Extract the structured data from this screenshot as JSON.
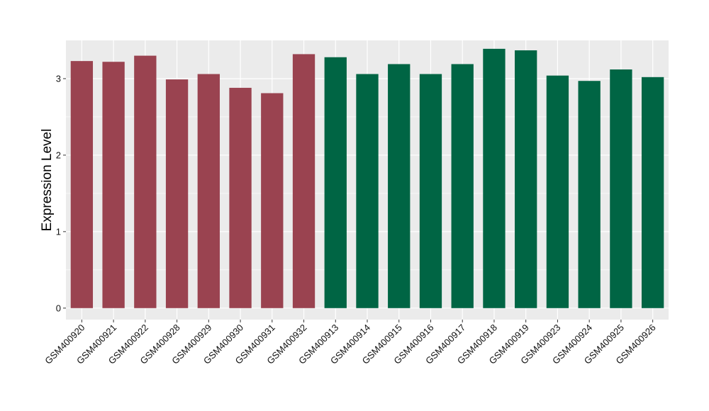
{
  "chart_data": {
    "type": "bar",
    "title": "",
    "xlabel": "",
    "ylabel": "Expression Level",
    "ylim": [
      -0.15,
      3.5
    ],
    "yticks": [
      0,
      1,
      2,
      3
    ],
    "grid": true,
    "legend": "none",
    "colors": {
      "panel": "#EBEBEB",
      "grid": "#FFFFFF",
      "group_a": "#9A4350",
      "group_b": "#006544"
    },
    "categories": [
      "GSM400920",
      "GSM400921",
      "GSM400922",
      "GSM400928",
      "GSM400929",
      "GSM400930",
      "GSM400931",
      "GSM400932",
      "GSM400913",
      "GSM400914",
      "GSM400915",
      "GSM400916",
      "GSM400917",
      "GSM400918",
      "GSM400919",
      "GSM400923",
      "GSM400924",
      "GSM400925",
      "GSM400926"
    ],
    "values": [
      3.23,
      3.22,
      3.3,
      2.99,
      3.06,
      2.88,
      2.81,
      3.32,
      3.28,
      3.06,
      3.19,
      3.06,
      3.19,
      3.39,
      3.37,
      3.04,
      2.97,
      3.12,
      3.02
    ],
    "bar_groups": [
      "a",
      "a",
      "a",
      "a",
      "a",
      "a",
      "a",
      "a",
      "b",
      "b",
      "b",
      "b",
      "b",
      "b",
      "b",
      "b",
      "b",
      "b",
      "b"
    ]
  }
}
